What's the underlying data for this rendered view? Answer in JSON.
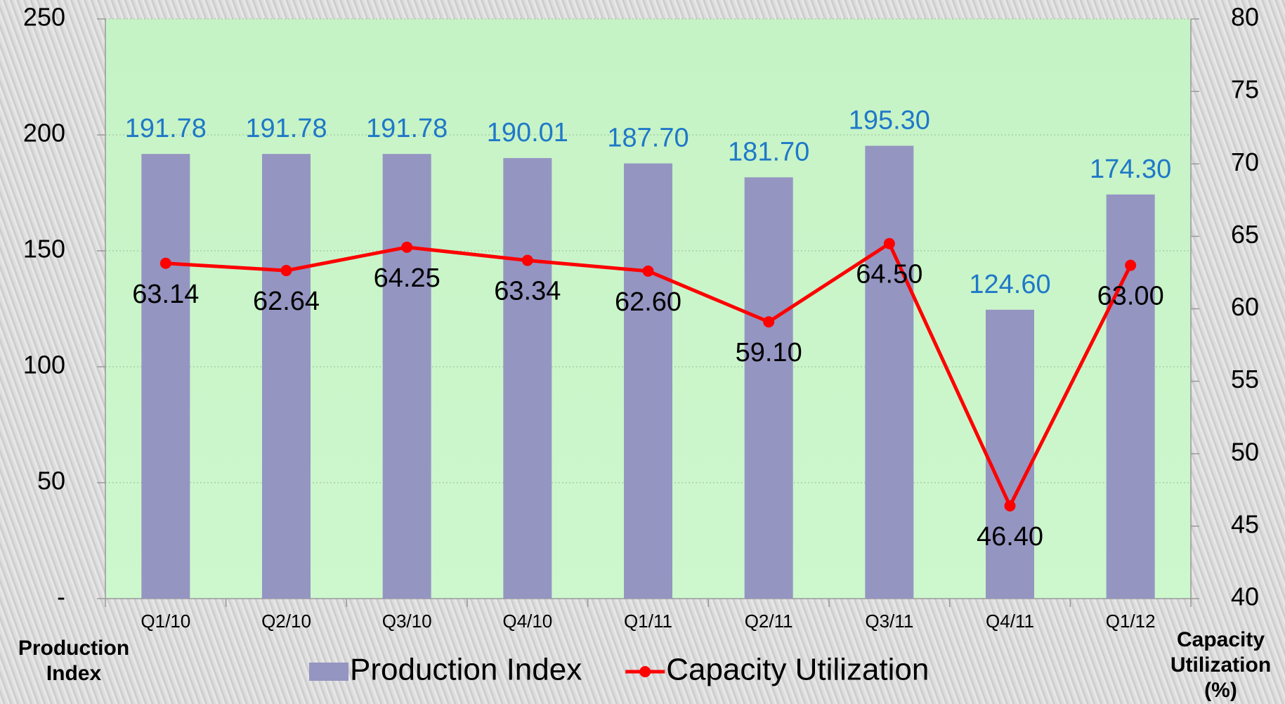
{
  "chart_data": {
    "type": "bar",
    "categories": [
      "Q1/10",
      "Q2/10",
      "Q3/10",
      "Q4/10",
      "Q1/11",
      "Q2/11",
      "Q3/11",
      "Q4/11",
      "Q1/12"
    ],
    "series": [
      {
        "name": "Production Index",
        "type": "bar",
        "color": "#9595c2",
        "values": [
          191.78,
          191.78,
          191.78,
          190.01,
          187.7,
          181.7,
          195.3,
          124.6,
          174.3
        ],
        "value_labels": [
          "191.78",
          "191.78",
          "191.78",
          "190.01",
          "187.70",
          "181.70",
          "195.30",
          "124.60",
          "174.30"
        ]
      },
      {
        "name": "Capacity Utilization",
        "type": "line",
        "axis": "y2",
        "color": "#ff0000",
        "values": [
          63.14,
          62.64,
          64.25,
          63.34,
          62.6,
          59.1,
          64.5,
          46.4,
          63.0
        ],
        "value_labels": [
          "63.14",
          "62.64",
          "64.25",
          "63.34",
          "62.60",
          "59.10",
          "64.50",
          "46.40",
          "63.00"
        ]
      }
    ],
    "ylabel": "Production Index",
    "y2label": "Capacity Utilization (%)",
    "ylim": [
      0,
      250
    ],
    "yticks": [
      {
        "value": 0,
        "label": "-"
      },
      50,
      100,
      150,
      200,
      250
    ],
    "y2lim": [
      40,
      80
    ],
    "y2ticks": [
      40,
      45,
      50,
      55,
      60,
      65,
      70,
      75,
      80
    ],
    "grid": true,
    "legend": "bottom"
  }
}
